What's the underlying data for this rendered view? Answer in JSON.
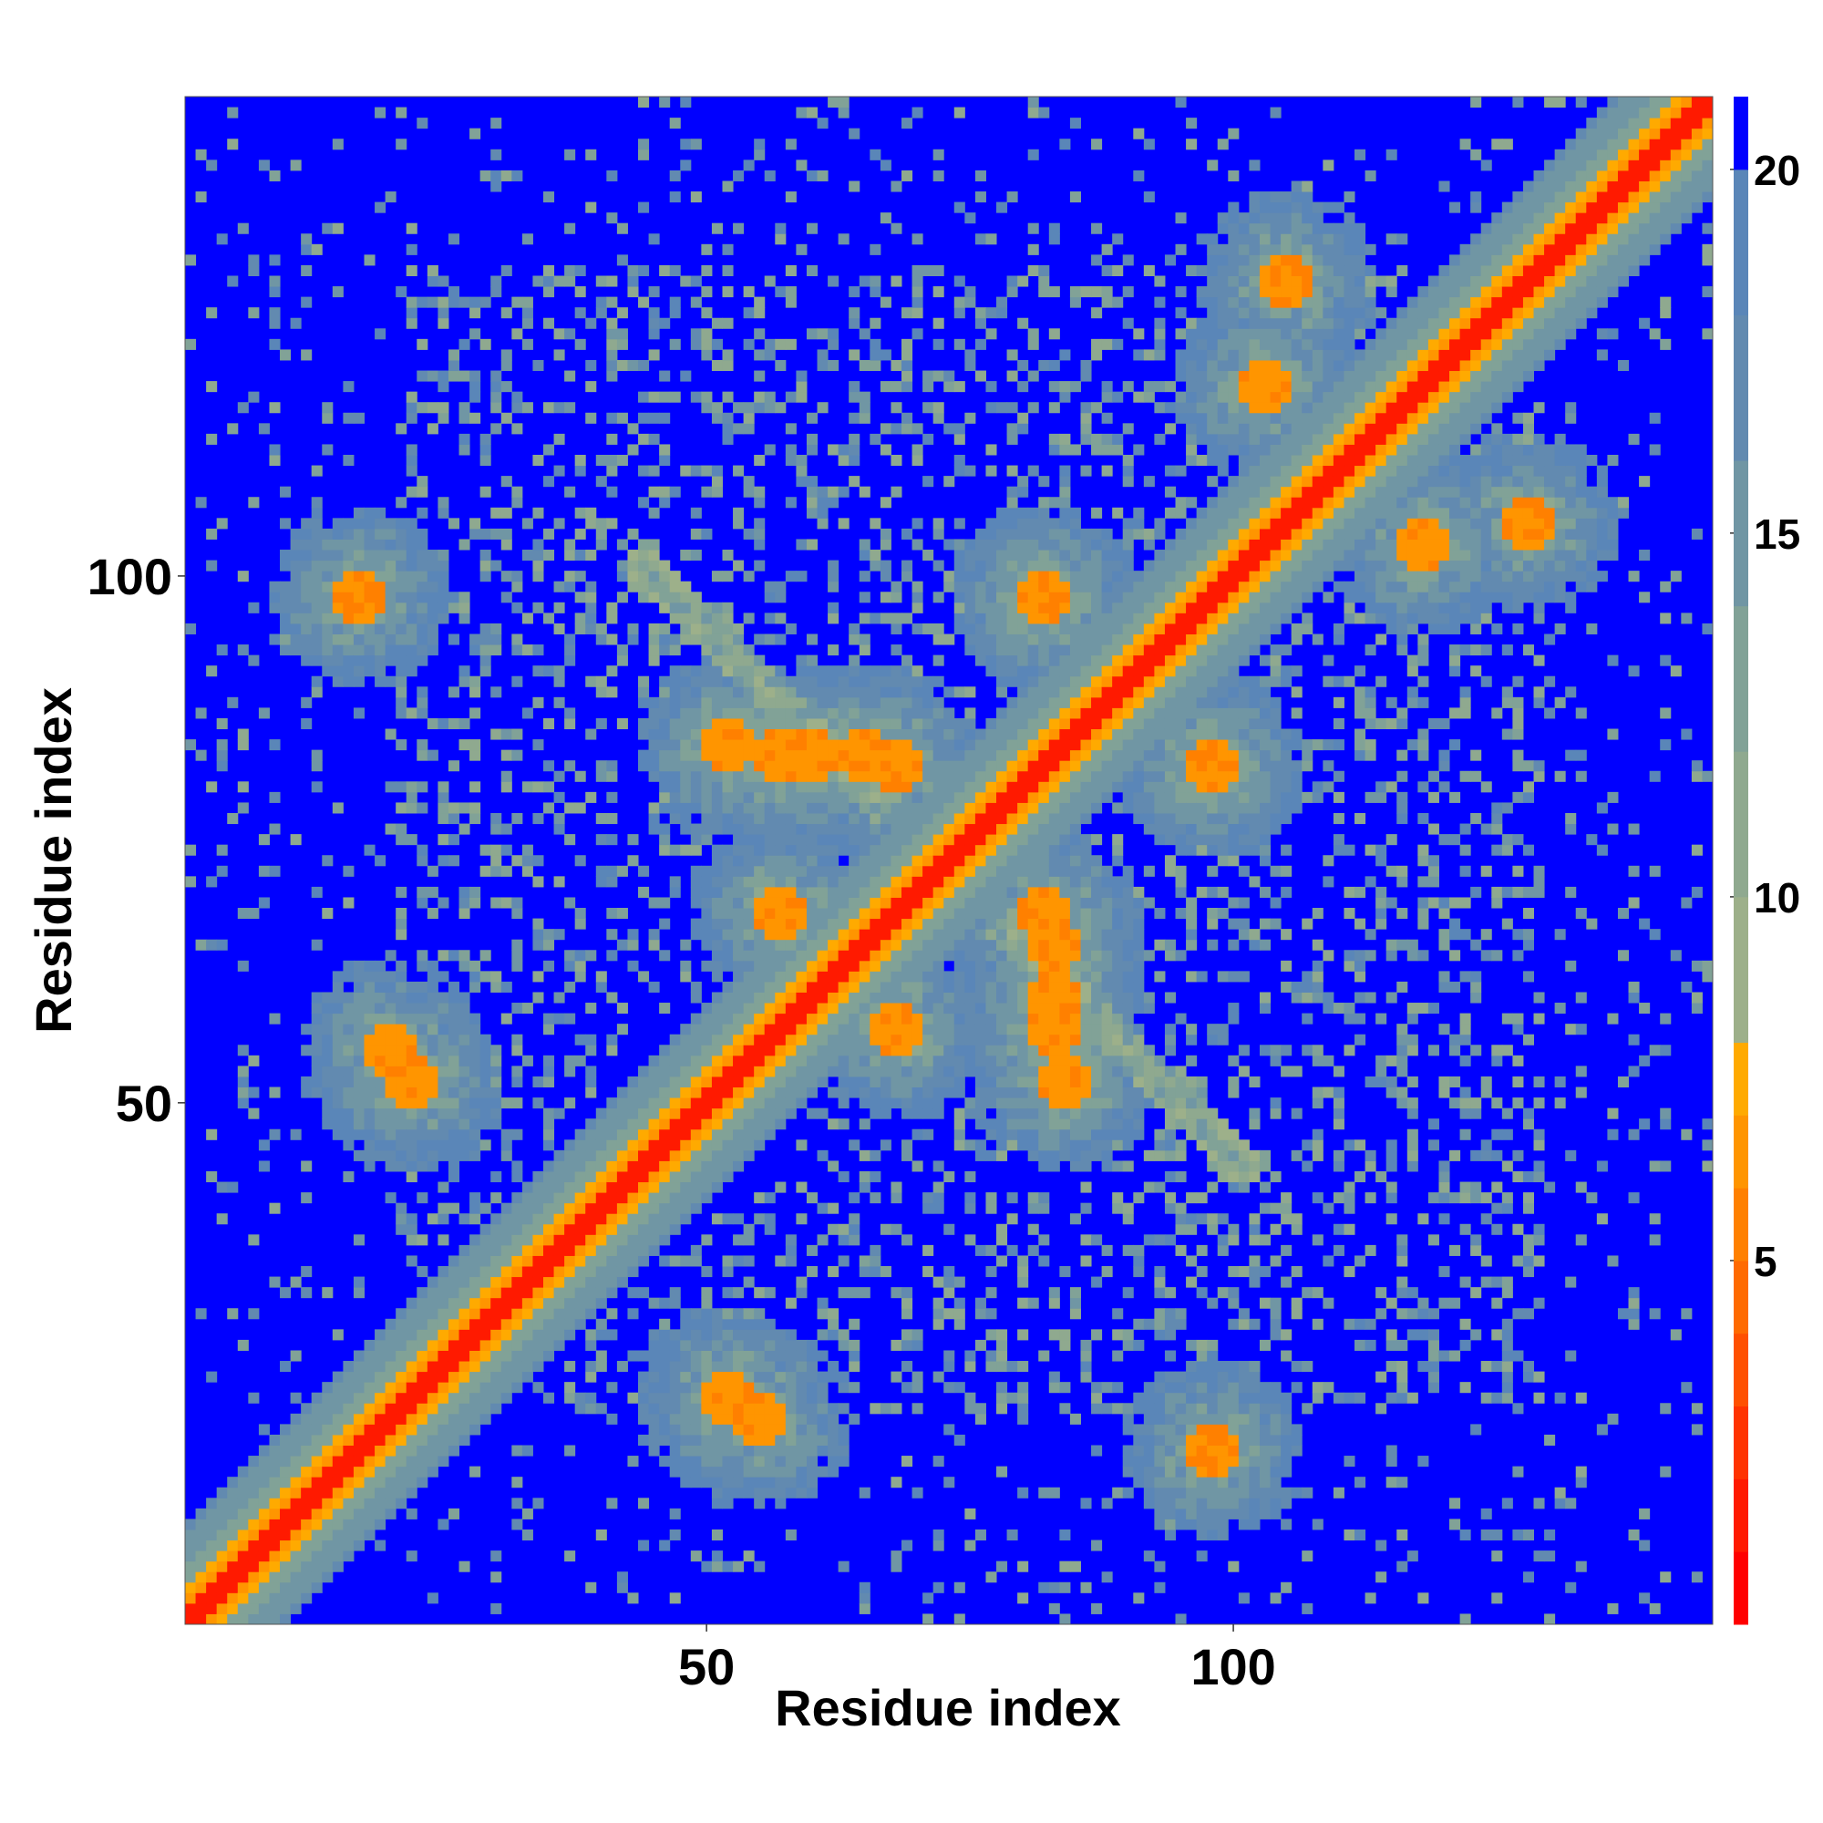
{
  "chart_data": {
    "type": "heatmap",
    "title": "",
    "xlabel": "Residue index",
    "ylabel": "Residue index",
    "xlim": [
      0.5,
      145.5
    ],
    "ylim": [
      0.5,
      145.5
    ],
    "x_ticks": [
      50,
      100
    ],
    "y_ticks": [
      50,
      100
    ],
    "x_tick_labels": [
      "50",
      "100"
    ],
    "y_tick_labels": [
      "50",
      "100"
    ],
    "grid": false,
    "matrix_size": 145,
    "colorbar": {
      "placement": "right",
      "range": [
        0,
        21
      ],
      "ticks": [
        5,
        10,
        15,
        20
      ],
      "tick_labels": [
        "5",
        "10",
        "15",
        "20"
      ],
      "bands": [
        {
          "from": 0,
          "to": 1,
          "color": "#ff0000"
        },
        {
          "from": 1,
          "to": 2,
          "color": "#ff1a00"
        },
        {
          "from": 2,
          "to": 3,
          "color": "#ff3300"
        },
        {
          "from": 3,
          "to": 4,
          "color": "#ff5000"
        },
        {
          "from": 4,
          "to": 5,
          "color": "#ff6a00"
        },
        {
          "from": 5,
          "to": 6,
          "color": "#ff8000"
        },
        {
          "from": 6,
          "to": 7,
          "color": "#ff9500"
        },
        {
          "from": 7,
          "to": 8,
          "color": "#ffaa00"
        },
        {
          "from": 8,
          "to": 10,
          "color": "#9db08a"
        },
        {
          "from": 10,
          "to": 12,
          "color": "#8fa98f"
        },
        {
          "from": 12,
          "to": 14,
          "color": "#81a297"
        },
        {
          "from": 14,
          "to": 16,
          "color": "#7096a4"
        },
        {
          "from": 16,
          "to": 18,
          "color": "#628ab0"
        },
        {
          "from": 18,
          "to": 20,
          "color": "#5a86b8"
        },
        {
          "from": 20,
          "to": 21,
          "color": "#0000ff"
        }
      ]
    },
    "description_of_values": "Symmetric residue-residue distance map; diagonal band ≈0–3 (red), orange ≈5–8 near helix and sheet contacts, grey-green 8–20 for medium distances, blue >20.",
    "features": [
      {
        "kind": "diagonal",
        "width": 1.5,
        "value": 1
      },
      {
        "kind": "diagonal_near",
        "width": 3.5,
        "value": 6
      },
      {
        "kind": "diagonal_halo",
        "width": 9,
        "value": 14
      },
      {
        "kind": "contact",
        "center": [
          55,
          20
        ],
        "value": 7,
        "note": "orange patch"
      },
      {
        "kind": "contact",
        "center": [
          22,
          52
        ],
        "value": 7,
        "note": "orange patch"
      },
      {
        "kind": "contact",
        "center": [
          57,
          83
        ],
        "value": 7,
        "note": "orange patch"
      },
      {
        "kind": "contact",
        "center": [
          65,
          83
        ],
        "value": 7,
        "note": "orange patch"
      },
      {
        "kind": "contact",
        "center": [
          83,
          60
        ],
        "value": 7,
        "note": "orange patch"
      },
      {
        "kind": "contact",
        "center": [
          84,
          52
        ],
        "value": 7,
        "note": "orange patch"
      },
      {
        "kind": "contact",
        "center": [
          82,
          68
        ],
        "value": 7,
        "note": "orange patch"
      },
      {
        "kind": "contact",
        "center": [
          57,
          68
        ],
        "value": 7,
        "note": "orange patch"
      },
      {
        "kind": "contact",
        "center": [
          118,
          103
        ],
        "value": 7,
        "note": "orange patch"
      },
      {
        "kind": "contact",
        "center": [
          105,
          128
        ],
        "value": 7,
        "note": "orange patch"
      },
      {
        "kind": "contact",
        "center": [
          98,
          82
        ],
        "value": 7,
        "note": "orange patch"
      },
      {
        "kind": "contact",
        "center": [
          82,
          98
        ],
        "value": 7,
        "note": "orange patch"
      },
      {
        "kind": "contact",
        "center": [
          98,
          17
        ],
        "value": 7,
        "note": "orange patch"
      }
    ]
  }
}
